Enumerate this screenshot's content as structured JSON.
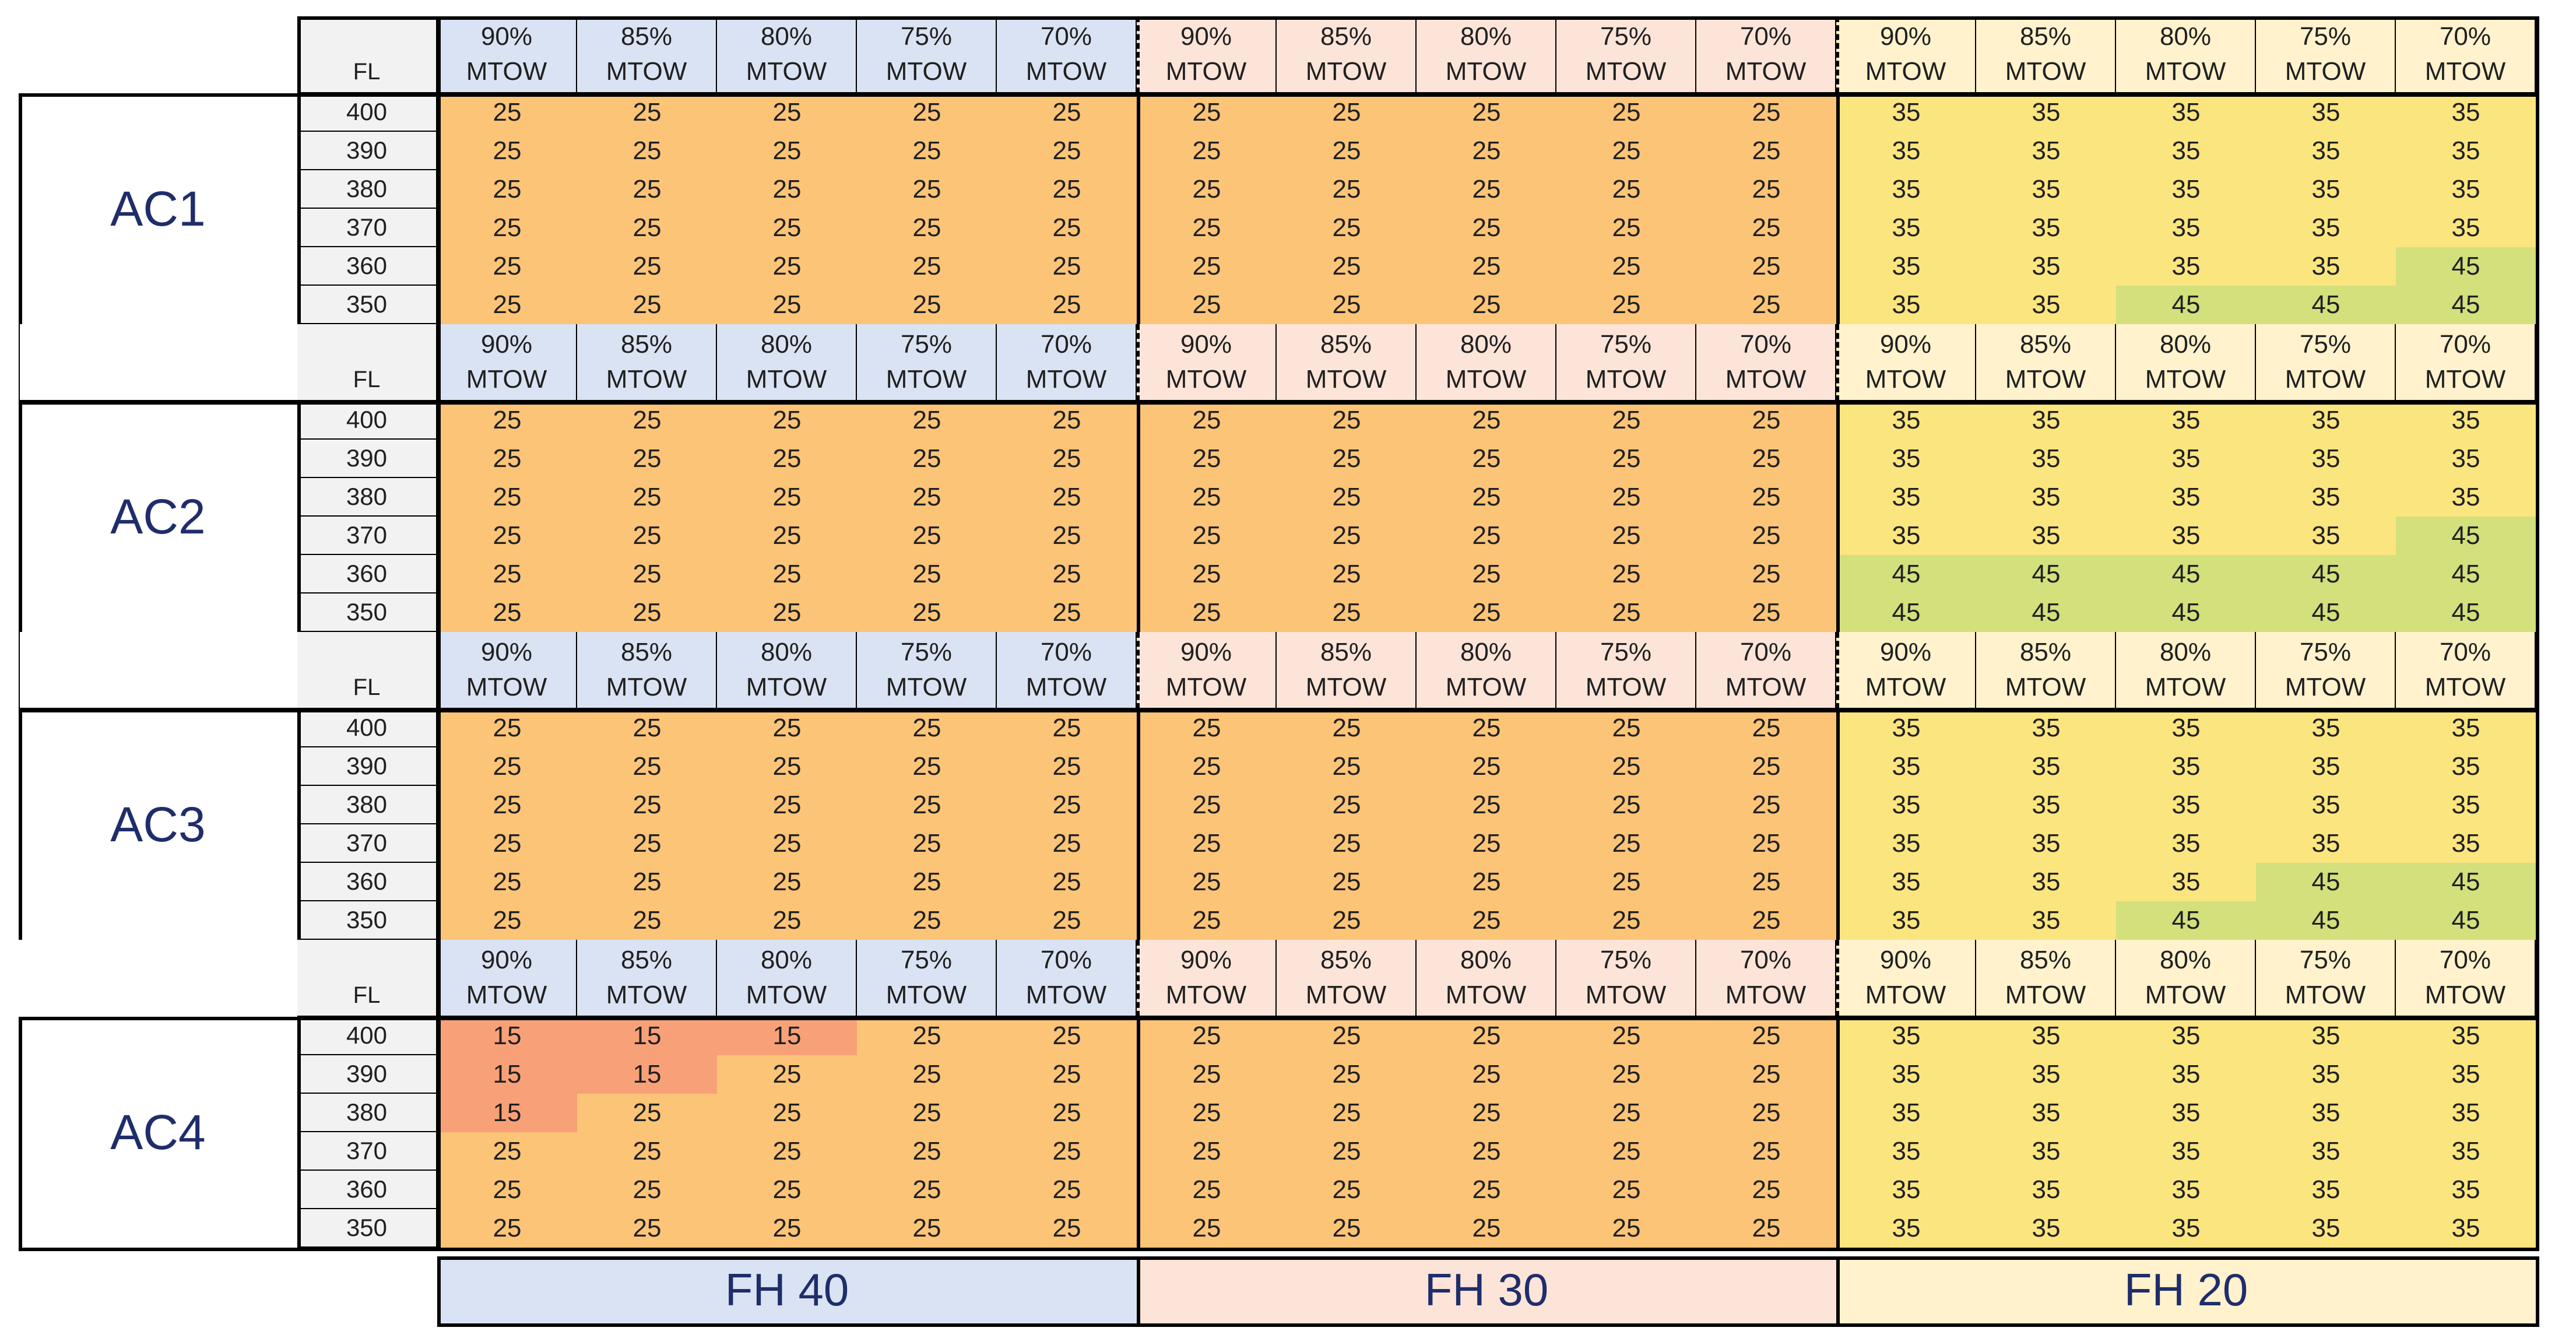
{
  "colors": {
    "fh40_header": "#dae3f3",
    "fh30_header": "#fde4d8",
    "fh20_header": "#fff2cc",
    "fl_column": "#f2f2f2",
    "aircraft_label_bg": "#ffffff",
    "value_15": "#f8a178",
    "value_25": "#fbc477",
    "value_35": "#fbe57f",
    "value_45": "#d3e07c",
    "label_text": "#1f2d6b"
  },
  "header": {
    "fl_label": "FL",
    "mtow_suffix": "MTOW",
    "mtow_levels": [
      "90%",
      "85%",
      "80%",
      "75%",
      "70%"
    ]
  },
  "flight_levels": [
    "400",
    "390",
    "380",
    "370",
    "360",
    "350"
  ],
  "fh_groups": [
    "FH 40",
    "FH 30",
    "FH 20"
  ],
  "aircraft": [
    {
      "label": "AC1",
      "rows": [
        [
          "25",
          "25",
          "25",
          "25",
          "25",
          "25",
          "25",
          "25",
          "25",
          "25",
          "35",
          "35",
          "35",
          "35",
          "35"
        ],
        [
          "25",
          "25",
          "25",
          "25",
          "25",
          "25",
          "25",
          "25",
          "25",
          "25",
          "35",
          "35",
          "35",
          "35",
          "35"
        ],
        [
          "25",
          "25",
          "25",
          "25",
          "25",
          "25",
          "25",
          "25",
          "25",
          "25",
          "35",
          "35",
          "35",
          "35",
          "35"
        ],
        [
          "25",
          "25",
          "25",
          "25",
          "25",
          "25",
          "25",
          "25",
          "25",
          "25",
          "35",
          "35",
          "35",
          "35",
          "35"
        ],
        [
          "25",
          "25",
          "25",
          "25",
          "25",
          "25",
          "25",
          "25",
          "25",
          "25",
          "35",
          "35",
          "35",
          "35",
          "45"
        ],
        [
          "25",
          "25",
          "25",
          "25",
          "25",
          "25",
          "25",
          "25",
          "25",
          "25",
          "35",
          "35",
          "45",
          "45",
          "45"
        ]
      ]
    },
    {
      "label": "AC2",
      "rows": [
        [
          "25",
          "25",
          "25",
          "25",
          "25",
          "25",
          "25",
          "25",
          "25",
          "25",
          "35",
          "35",
          "35",
          "35",
          "35"
        ],
        [
          "25",
          "25",
          "25",
          "25",
          "25",
          "25",
          "25",
          "25",
          "25",
          "25",
          "35",
          "35",
          "35",
          "35",
          "35"
        ],
        [
          "25",
          "25",
          "25",
          "25",
          "25",
          "25",
          "25",
          "25",
          "25",
          "25",
          "35",
          "35",
          "35",
          "35",
          "35"
        ],
        [
          "25",
          "25",
          "25",
          "25",
          "25",
          "25",
          "25",
          "25",
          "25",
          "25",
          "35",
          "35",
          "35",
          "35",
          "45"
        ],
        [
          "25",
          "25",
          "25",
          "25",
          "25",
          "25",
          "25",
          "25",
          "25",
          "25",
          "45",
          "45",
          "45",
          "45",
          "45"
        ],
        [
          "25",
          "25",
          "25",
          "25",
          "25",
          "25",
          "25",
          "25",
          "25",
          "25",
          "45",
          "45",
          "45",
          "45",
          "45"
        ]
      ]
    },
    {
      "label": "AC3",
      "rows": [
        [
          "25",
          "25",
          "25",
          "25",
          "25",
          "25",
          "25",
          "25",
          "25",
          "25",
          "35",
          "35",
          "35",
          "35",
          "35"
        ],
        [
          "25",
          "25",
          "25",
          "25",
          "25",
          "25",
          "25",
          "25",
          "25",
          "25",
          "35",
          "35",
          "35",
          "35",
          "35"
        ],
        [
          "25",
          "25",
          "25",
          "25",
          "25",
          "25",
          "25",
          "25",
          "25",
          "25",
          "35",
          "35",
          "35",
          "35",
          "35"
        ],
        [
          "25",
          "25",
          "25",
          "25",
          "25",
          "25",
          "25",
          "25",
          "25",
          "25",
          "35",
          "35",
          "35",
          "35",
          "35"
        ],
        [
          "25",
          "25",
          "25",
          "25",
          "25",
          "25",
          "25",
          "25",
          "25",
          "25",
          "35",
          "35",
          "35",
          "45",
          "45"
        ],
        [
          "25",
          "25",
          "25",
          "25",
          "25",
          "25",
          "25",
          "25",
          "25",
          "25",
          "35",
          "35",
          "45",
          "45",
          "45"
        ]
      ]
    },
    {
      "label": "AC4",
      "rows": [
        [
          "15",
          "15",
          "15",
          "25",
          "25",
          "25",
          "25",
          "25",
          "25",
          "25",
          "35",
          "35",
          "35",
          "35",
          "35"
        ],
        [
          "15",
          "15",
          "25",
          "25",
          "25",
          "25",
          "25",
          "25",
          "25",
          "25",
          "35",
          "35",
          "35",
          "35",
          "35"
        ],
        [
          "15",
          "25",
          "25",
          "25",
          "25",
          "25",
          "25",
          "25",
          "25",
          "25",
          "35",
          "35",
          "35",
          "35",
          "35"
        ],
        [
          "25",
          "25",
          "25",
          "25",
          "25",
          "25",
          "25",
          "25",
          "25",
          "25",
          "35",
          "35",
          "35",
          "35",
          "35"
        ],
        [
          "25",
          "25",
          "25",
          "25",
          "25",
          "25",
          "25",
          "25",
          "25",
          "25",
          "35",
          "35",
          "35",
          "35",
          "35"
        ],
        [
          "25",
          "25",
          "25",
          "25",
          "25",
          "25",
          "25",
          "25",
          "25",
          "25",
          "35",
          "35",
          "35",
          "35",
          "35"
        ]
      ]
    }
  ]
}
